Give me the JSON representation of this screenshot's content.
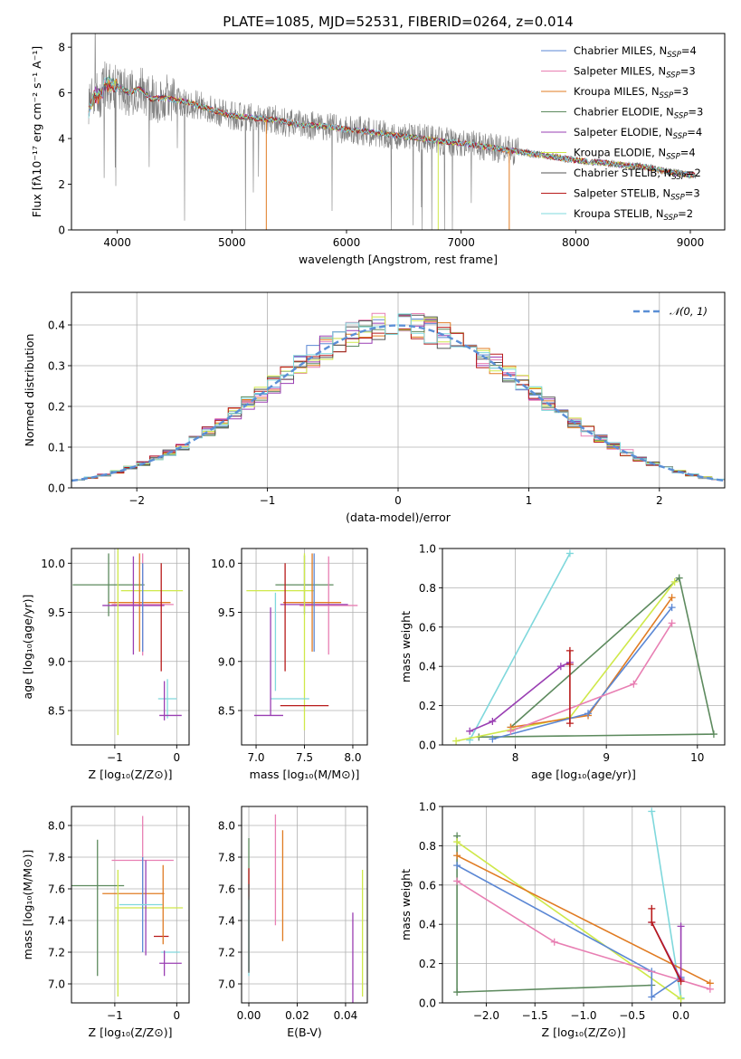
{
  "figure": {
    "title": "PLATE=1085, MJD=52531, FIBERID=0264, z=0.014",
    "colors": {
      "Chabrier MILES": "#5b87d4",
      "Salpeter MILES": "#e87fb3",
      "Kroupa MILES": "#e07b22",
      "Chabrier ELODIE": "#5d8a5e",
      "Salpeter ELODIE": "#9a3fb3",
      "Kroupa ELODIE": "#cfe84a",
      "Chabrier STELIB": "#555555",
      "Salpeter STELIB": "#b81a1a",
      "Kroupa STELIB": "#7fd8dc",
      "data": "#808080",
      "gaussian": "#5b8fd6"
    }
  },
  "chart_data": [
    {
      "id": "spectrum",
      "type": "line",
      "title": "PLATE=1085, MJD=52531, FIBERID=0264, z=0.014",
      "xlabel": "wavelength [Angstrom, rest frame]",
      "ylabel": "Flux [fλ10⁻¹⁷ erg cm⁻² s⁻¹ A⁻¹]",
      "xlim": [
        3600,
        9300
      ],
      "ylim": [
        0,
        8.6
      ],
      "xticks": [
        4000,
        5000,
        6000,
        7000,
        8000,
        9000
      ],
      "yticks": [
        0,
        2,
        4,
        6,
        8
      ],
      "legend_position": "upper-right",
      "legend": [
        {
          "label": "Chabrier MILES, N",
          "sub": "SSP",
          "suffix": "=4"
        },
        {
          "label": "Salpeter MILES, N",
          "sub": "SSP",
          "suffix": "=3"
        },
        {
          "label": "Kroupa MILES, N",
          "sub": "SSP",
          "suffix": "=3"
        },
        {
          "label": "Chabrier ELODIE, N",
          "sub": "SSP",
          "suffix": "=3"
        },
        {
          "label": "Salpeter ELODIE, N",
          "sub": "SSP",
          "suffix": "=4"
        },
        {
          "label": "Kroupa ELODIE, N",
          "sub": "SSP",
          "suffix": "=4"
        },
        {
          "label": "Chabrier STELIB, N",
          "sub": "SSP",
          "suffix": "=2"
        },
        {
          "label": "Salpeter STELIB, N",
          "sub": "SSP",
          "suffix": "=3"
        },
        {
          "label": "Kroupa STELIB, N",
          "sub": "SSP",
          "suffix": "=2"
        }
      ],
      "continuum": {
        "x": [
          3750,
          3800,
          3850,
          3900,
          4000,
          4100,
          4200,
          4300,
          4400,
          4600,
          4800,
          5000,
          5200,
          5400,
          5600,
          5800,
          6000,
          6200,
          6400,
          6600,
          6800,
          7000,
          7200,
          7400,
          7600,
          7800,
          8000,
          8200,
          8400,
          8600,
          8800,
          9000
        ],
        "y": [
          5.2,
          5.9,
          5.8,
          6.4,
          6.3,
          6.0,
          6.2,
          5.7,
          5.8,
          5.6,
          5.3,
          5.0,
          4.9,
          4.8,
          4.6,
          4.55,
          4.4,
          4.3,
          4.15,
          4.05,
          3.9,
          3.8,
          3.65,
          3.5,
          3.35,
          3.2,
          3.05,
          2.95,
          2.85,
          2.75,
          2.55,
          2.4
        ]
      },
      "dropouts": [
        {
          "series": "Kroupa MILES",
          "x": 5300
        },
        {
          "series": "Kroupa MILES",
          "x": 7420
        },
        {
          "series": "Kroupa ELODIE",
          "x": 6800
        }
      ]
    },
    {
      "id": "residuals",
      "type": "histogram",
      "xlabel": "(data-model)/error",
      "ylabel": "Normed distribution",
      "xlim": [
        -2.5,
        2.5
      ],
      "ylim": [
        0,
        0.48
      ],
      "xticks": [
        -2,
        -1,
        0,
        1,
        2
      ],
      "yticks": [
        0.0,
        0.1,
        0.2,
        0.3,
        0.4
      ],
      "bin_width": 0.1,
      "legend_position": "upper-right",
      "legend": [
        "𝒩(0, 1)"
      ],
      "model": {
        "name": "𝒩(0, 1)",
        "mean": 0,
        "sigma": 1
      }
    },
    {
      "id": "age-vs-z",
      "type": "errorbar",
      "xlabel": "Z [log₁₀(Z/Z⊙)]",
      "ylabel": "age  [log₁₀(age/yr)]",
      "xlim": [
        -1.7,
        0.2
      ],
      "ylim": [
        8.15,
        10.15
      ],
      "xticks": [
        -1,
        0
      ],
      "yticks": [
        8.5,
        9.0,
        9.5,
        10.0
      ],
      "points": [
        {
          "series": "Chabrier ELODIE",
          "x": -1.1,
          "xerr": 0.58,
          "y": 9.78,
          "yerr": 0.32
        },
        {
          "series": "Kroupa ELODIE",
          "x": -0.4,
          "xerr": 0.5,
          "y": 9.72,
          "yerr": 0.0
        },
        {
          "series": "Salpeter MILES",
          "x": -0.55,
          "xerr": 0.5,
          "y": 9.58,
          "yerr": 0.52
        },
        {
          "series": "Kroupa MILES",
          "x": -0.6,
          "xerr": 0.5,
          "y": 9.6,
          "yerr": 0.5
        },
        {
          "series": "Salpeter ELODIE",
          "x": -0.7,
          "xerr": 0.5,
          "y": 9.57,
          "yerr": 0.5
        },
        {
          "series": "Kroupa ELODIE",
          "x": -0.95,
          "xerr": 0.0,
          "y": 9.3,
          "yerr": 1.05
        },
        {
          "series": "Chabrier MILES",
          "x": -0.55,
          "xerr": 0.0,
          "y": 9.55,
          "yerr": 0.45
        },
        {
          "series": "Salpeter STELIB",
          "x": -0.25,
          "xerr": 0.0,
          "y": 9.45,
          "yerr": 0.55
        },
        {
          "series": "Kroupa STELIB",
          "x": -0.15,
          "xerr": 0.15,
          "y": 8.62,
          "yerr": 0.2
        },
        {
          "series": "Salpeter ELODIE",
          "x": -0.1,
          "xerr": 0.18,
          "y": 8.45,
          "yerr": 0.0
        },
        {
          "series": "Salpeter ELODIE",
          "x": -0.2,
          "xerr": 0.0,
          "y": 8.6,
          "yerr": 0.2
        }
      ]
    },
    {
      "id": "age-vs-mass",
      "type": "errorbar",
      "xlabel": "mass [log₁₀(M/M⊙)]",
      "ylabel": "",
      "xlim": [
        6.85,
        8.15
      ],
      "ylim": [
        8.15,
        10.15
      ],
      "xticks": [
        7.0,
        7.5,
        8.0
      ],
      "yticks": [
        8.5,
        9.0,
        9.5,
        10.0
      ],
      "points": [
        {
          "series": "Chabrier ELODIE",
          "x": 7.5,
          "xerr": 0.3,
          "y": 9.78,
          "yerr": 0.3
        },
        {
          "series": "Kroupa ELODIE",
          "x": 7.25,
          "xerr": 0.35,
          "y": 9.72,
          "yerr": 0.0
        },
        {
          "series": "Salpeter MILES",
          "x": 7.75,
          "xerr": 0.3,
          "y": 9.57,
          "yerr": 0.5
        },
        {
          "series": "Kroupa MILES",
          "x": 7.58,
          "xerr": 0.3,
          "y": 9.6,
          "yerr": 0.5
        },
        {
          "series": "Salpeter ELODIE",
          "x": 7.6,
          "xerr": 0.35,
          "y": 9.58,
          "yerr": 0.0
        },
        {
          "series": "Chabrier MILES",
          "x": 7.6,
          "xerr": 0.0,
          "y": 9.6,
          "yerr": 0.5
        },
        {
          "series": "Salpeter STELIB",
          "x": 7.3,
          "xerr": 0.0,
          "y": 9.45,
          "yerr": 0.55
        },
        {
          "series": "Kroupa ELODIE",
          "x": 7.5,
          "xerr": 0.0,
          "y": 9.2,
          "yerr": 0.9
        },
        {
          "series": "Kroupa STELIB",
          "x": 7.35,
          "xerr": 0.2,
          "y": 8.62,
          "yerr": 0.0
        },
        {
          "series": "Salpeter STELIB",
          "x": 7.5,
          "xerr": 0.25,
          "y": 8.55,
          "yerr": 0.0
        },
        {
          "series": "Salpeter ELODIE",
          "x": 7.15,
          "xerr": 0.0,
          "y": 9.0,
          "yerr": 0.55
        },
        {
          "series": "Salpeter ELODIE",
          "x": 7.13,
          "xerr": 0.15,
          "y": 8.45,
          "yerr": 0.0
        },
        {
          "series": "Kroupa STELIB",
          "x": 7.2,
          "xerr": 0.0,
          "y": 9.2,
          "yerr": 0.5
        }
      ]
    },
    {
      "id": "weight-vs-age",
      "type": "line",
      "xlabel": "age  [log₁₀(age/yr)]",
      "ylabel": "mass weight",
      "xlim": [
        7.2,
        10.3
      ],
      "ylim": [
        0,
        1
      ],
      "xticks": [
        8,
        9,
        10
      ],
      "yticks": [
        0.0,
        0.2,
        0.4,
        0.6,
        0.8,
        1.0
      ],
      "series": [
        {
          "name": "Kroupa STELIB",
          "x": [
            7.5,
            8.6
          ],
          "y": [
            0.025,
            0.975
          ]
        },
        {
          "name": "Chabrier ELODIE",
          "x": [
            7.95,
            9.8,
            10.18,
            7.6
          ],
          "y": [
            0.09,
            0.85,
            0.055,
            0.04
          ]
        },
        {
          "name": "Kroupa ELODIE",
          "x": [
            7.35,
            8.6,
            9.75
          ],
          "y": [
            0.02,
            0.14,
            0.83
          ]
        },
        {
          "name": "Kroupa MILES",
          "x": [
            7.95,
            8.8,
            9.72
          ],
          "y": [
            0.09,
            0.15,
            0.75
          ]
        },
        {
          "name": "Chabrier MILES",
          "x": [
            7.75,
            8.8,
            9.72
          ],
          "y": [
            0.03,
            0.16,
            0.7
          ]
        },
        {
          "name": "Salpeter MILES",
          "x": [
            7.95,
            9.3,
            9.72
          ],
          "y": [
            0.07,
            0.31,
            0.62
          ]
        },
        {
          "name": "Salpeter ELODIE",
          "x": [
            7.5,
            7.75,
            8.5,
            8.6
          ],
          "y": [
            0.07,
            0.12,
            0.4,
            0.42
          ]
        },
        {
          "name": "Salpeter STELIB",
          "x": [
            8.6,
            8.6,
            8.6
          ],
          "y": [
            0.11,
            0.41,
            0.48
          ]
        }
      ]
    },
    {
      "id": "mass-vs-z",
      "type": "errorbar",
      "xlabel": "Z [log₁₀(Z/Z⊙)]",
      "ylabel": "mass [log₁₀(M/M⊙)]",
      "xlim": [
        -1.7,
        0.2
      ],
      "ylim": [
        6.88,
        8.12
      ],
      "xticks": [
        -1,
        0
      ],
      "yticks": [
        7.0,
        7.2,
        7.4,
        7.6,
        7.8,
        8.0
      ],
      "points": [
        {
          "series": "Chabrier ELODIE",
          "x": -1.3,
          "xerr": 0.45,
          "y": 7.62,
          "yerr": 0.0
        },
        {
          "series": "Chabrier ELODIE",
          "x": -1.28,
          "xerr": 0.0,
          "y": 7.48,
          "yerr": 0.43
        },
        {
          "series": "Salpeter MILES",
          "x": -0.55,
          "xerr": 0.5,
          "y": 7.78,
          "yerr": 0.28
        },
        {
          "series": "Kroupa MILES",
          "x": -0.7,
          "xerr": 0.5,
          "y": 7.57,
          "yerr": 0.0
        },
        {
          "series": "Kroupa ELODIE",
          "x": -0.45,
          "xerr": 0.55,
          "y": 7.48,
          "yerr": 0.0
        },
        {
          "series": "Kroupa ELODIE",
          "x": -0.95,
          "xerr": 0.0,
          "y": 7.32,
          "yerr": 0.4
        },
        {
          "series": "Chabrier MILES",
          "x": -0.55,
          "xerr": 0.0,
          "y": 7.5,
          "yerr": 0.3
        },
        {
          "series": "Salpeter ELODIE",
          "x": -0.5,
          "xerr": 0.0,
          "y": 7.48,
          "yerr": 0.3
        },
        {
          "series": "Kroupa STELIB",
          "x": -0.58,
          "xerr": 0.35,
          "y": 7.5,
          "yerr": 0.0
        },
        {
          "series": "Salpeter STELIB",
          "x": -0.25,
          "xerr": 0.12,
          "y": 7.3,
          "yerr": 0.0
        },
        {
          "series": "Kroupa MILES",
          "x": -0.22,
          "xerr": 0.0,
          "y": 7.5,
          "yerr": 0.25
        },
        {
          "series": "Kroupa STELIB",
          "x": -0.1,
          "xerr": 0.15,
          "y": 7.2,
          "yerr": 0.0
        },
        {
          "series": "Salpeter ELODIE",
          "x": -0.1,
          "xerr": 0.18,
          "y": 7.13,
          "yerr": 0.0
        },
        {
          "series": "Salpeter ELODIE",
          "x": -0.2,
          "xerr": 0.0,
          "y": 7.13,
          "yerr": 0.08
        }
      ]
    },
    {
      "id": "mass-vs-ebv",
      "type": "errorbar",
      "xlabel": "E(B-V)",
      "ylabel": "",
      "xlim": [
        -0.003,
        0.049
      ],
      "ylim": [
        6.88,
        8.12
      ],
      "xticks": [
        0.0,
        0.02,
        0.04
      ],
      "yticks": [
        7.0,
        7.2,
        7.4,
        7.6,
        7.8,
        8.0
      ],
      "points": [
        {
          "series": "Chabrier ELODIE",
          "x": 0.0,
          "xerr": 0.0,
          "y": 7.5,
          "yerr": 0.42
        },
        {
          "series": "Salpeter STELIB",
          "x": 0.0,
          "xerr": 0.0,
          "y": 7.63,
          "yerr": 0.1
        },
        {
          "series": "Kroupa STELIB",
          "x": 0.0,
          "xerr": 0.0,
          "y": 7.3,
          "yerr": 0.25
        },
        {
          "series": "Chabrier STELIB",
          "x": 0.0,
          "xerr": 0.0,
          "y": 7.35,
          "yerr": 0.28
        },
        {
          "series": "Salpeter MILES",
          "x": 0.011,
          "xerr": 0.0,
          "y": 7.72,
          "yerr": 0.35
        },
        {
          "series": "Kroupa MILES",
          "x": 0.014,
          "xerr": 0.0,
          "y": 7.62,
          "yerr": 0.35
        },
        {
          "series": "Salpeter ELODIE",
          "x": 0.043,
          "xerr": 0.0,
          "y": 7.15,
          "yerr": 0.3
        },
        {
          "series": "Kroupa ELODIE",
          "x": 0.047,
          "xerr": 0.0,
          "y": 7.32,
          "yerr": 0.4
        }
      ]
    },
    {
      "id": "weight-vs-z",
      "type": "line",
      "xlabel": "Z [log₁₀(Z/Z⊙)]",
      "ylabel": "mass weight",
      "xlim": [
        -2.45,
        0.45
      ],
      "ylim": [
        0,
        1
      ],
      "xticks": [
        -2.0,
        -1.5,
        -1.0,
        -0.5,
        0.0
      ],
      "yticks": [
        0.0,
        0.2,
        0.4,
        0.6,
        0.8,
        1.0
      ],
      "series": [
        {
          "name": "Kroupa STELIB",
          "x": [
            -0.3,
            0.0
          ],
          "y": [
            0.975,
            0.025
          ]
        },
        {
          "name": "Chabrier ELODIE",
          "x": [
            -2.3,
            -2.3,
            -0.3
          ],
          "y": [
            0.85,
            0.055,
            0.09
          ]
        },
        {
          "name": "Kroupa ELODIE",
          "x": [
            -2.3,
            0.0
          ],
          "y": [
            0.82,
            0.02
          ]
        },
        {
          "name": "Kroupa MILES",
          "x": [
            -2.3,
            0.3
          ],
          "y": [
            0.75,
            0.1
          ]
        },
        {
          "name": "Chabrier MILES",
          "x": [
            -2.3,
            -0.3,
            -0.3,
            0.0
          ],
          "y": [
            0.7,
            0.16,
            0.03,
            0.13
          ]
        },
        {
          "name": "Salpeter MILES",
          "x": [
            -2.3,
            -1.3,
            0.3
          ],
          "y": [
            0.62,
            0.31,
            0.07
          ]
        },
        {
          "name": "Salpeter ELODIE",
          "x": [
            -0.3,
            0.0,
            0.0
          ],
          "y": [
            0.41,
            0.12,
            0.39
          ]
        },
        {
          "name": "Salpeter STELIB",
          "x": [
            -0.3,
            -0.3,
            0.0
          ],
          "y": [
            0.48,
            0.41,
            0.11
          ]
        }
      ]
    }
  ]
}
